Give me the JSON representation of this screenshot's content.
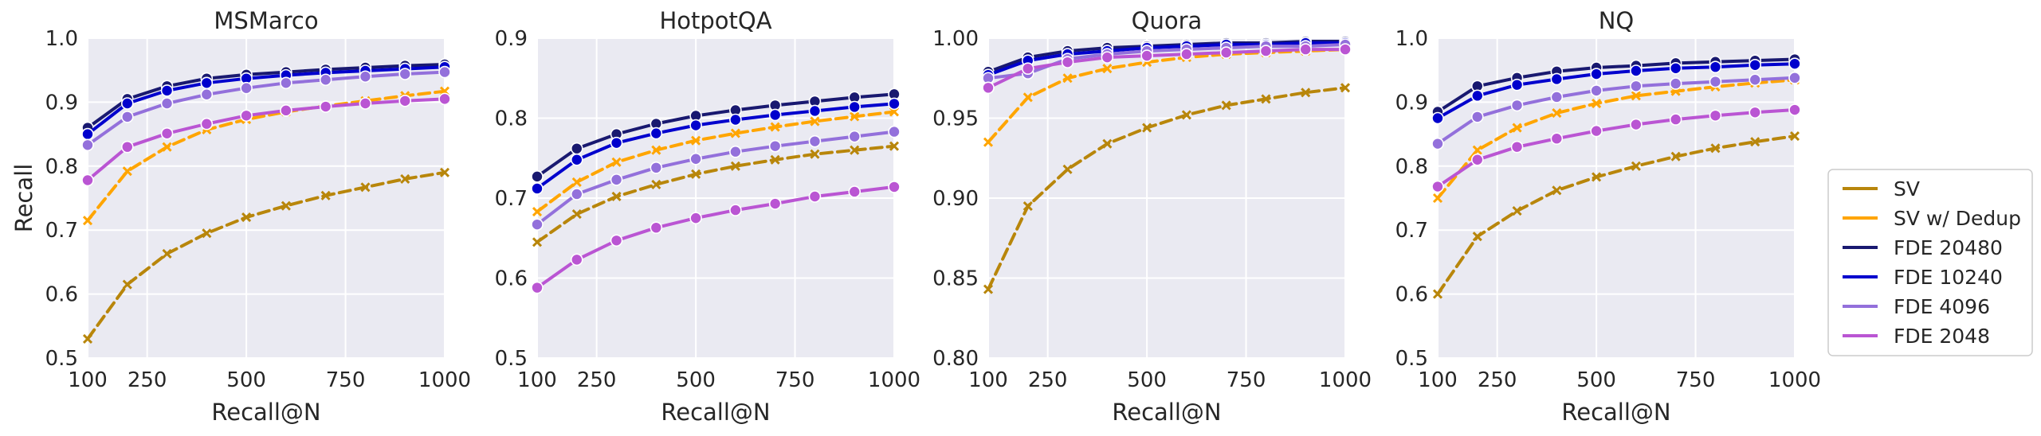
{
  "chart_data": [
    {
      "type": "line",
      "title": "MSMarco",
      "xlabel": "Recall@N",
      "ylabel": "Recall",
      "xlim": [
        100,
        1000
      ],
      "ylim": [
        0.5,
        1.0
      ],
      "xticks": [
        100,
        250,
        500,
        750,
        1000
      ],
      "yticks": [
        0.5,
        0.6,
        0.7,
        0.8,
        0.9,
        1.0
      ],
      "ytick_labels": [
        "0.5",
        "0.6",
        "0.7",
        "0.8",
        "0.9",
        "1.0"
      ],
      "x": [
        100,
        200,
        300,
        400,
        500,
        600,
        700,
        800,
        900,
        1000
      ],
      "series": [
        {
          "name": "SV",
          "values": [
            0.53,
            0.615,
            0.663,
            0.695,
            0.72,
            0.738,
            0.754,
            0.767,
            0.78,
            0.79
          ]
        },
        {
          "name": "SV w/ Dedup",
          "values": [
            0.715,
            0.792,
            0.83,
            0.857,
            0.873,
            0.885,
            0.894,
            0.902,
            0.91,
            0.917
          ]
        },
        {
          "name": "FDE 20480",
          "values": [
            0.86,
            0.905,
            0.925,
            0.937,
            0.943,
            0.947,
            0.951,
            0.954,
            0.957,
            0.959
          ]
        },
        {
          "name": "FDE 10240",
          "values": [
            0.85,
            0.898,
            0.918,
            0.93,
            0.937,
            0.942,
            0.946,
            0.949,
            0.952,
            0.955
          ]
        },
        {
          "name": "FDE 4096",
          "values": [
            0.833,
            0.877,
            0.898,
            0.912,
            0.922,
            0.93,
            0.935,
            0.94,
            0.944,
            0.947
          ]
        },
        {
          "name": "FDE 2048",
          "values": [
            0.778,
            0.83,
            0.851,
            0.866,
            0.879,
            0.887,
            0.893,
            0.898,
            0.902,
            0.905
          ]
        }
      ]
    },
    {
      "type": "line",
      "title": "HotpotQA",
      "xlabel": "Recall@N",
      "ylabel": "",
      "xlim": [
        100,
        1000
      ],
      "ylim": [
        0.5,
        0.9
      ],
      "xticks": [
        100,
        250,
        500,
        750,
        1000
      ],
      "yticks": [
        0.5,
        0.6,
        0.7,
        0.8,
        0.9
      ],
      "ytick_labels": [
        "0.5",
        "0.6",
        "0.7",
        "0.8",
        "0.9"
      ],
      "x": [
        100,
        200,
        300,
        400,
        500,
        600,
        700,
        800,
        900,
        1000
      ],
      "series": [
        {
          "name": "SV",
          "values": [
            0.645,
            0.68,
            0.702,
            0.717,
            0.73,
            0.74,
            0.748,
            0.755,
            0.76,
            0.765
          ]
        },
        {
          "name": "SV w/ Dedup",
          "values": [
            0.683,
            0.72,
            0.745,
            0.76,
            0.772,
            0.781,
            0.789,
            0.796,
            0.802,
            0.808
          ]
        },
        {
          "name": "FDE 20480",
          "values": [
            0.727,
            0.762,
            0.78,
            0.793,
            0.803,
            0.81,
            0.816,
            0.821,
            0.826,
            0.83
          ]
        },
        {
          "name": "FDE 10240",
          "values": [
            0.712,
            0.748,
            0.769,
            0.781,
            0.791,
            0.798,
            0.804,
            0.809,
            0.814,
            0.818
          ]
        },
        {
          "name": "FDE 4096",
          "values": [
            0.667,
            0.705,
            0.723,
            0.738,
            0.749,
            0.758,
            0.765,
            0.771,
            0.777,
            0.783
          ]
        },
        {
          "name": "FDE 2048",
          "values": [
            0.588,
            0.623,
            0.647,
            0.663,
            0.675,
            0.685,
            0.693,
            0.702,
            0.708,
            0.714
          ]
        }
      ]
    },
    {
      "type": "line",
      "title": "Quora",
      "xlabel": "Recall@N",
      "ylabel": "",
      "xlim": [
        100,
        1000
      ],
      "ylim": [
        0.8,
        1.0
      ],
      "xticks": [
        100,
        250,
        500,
        750,
        1000
      ],
      "yticks": [
        0.8,
        0.85,
        0.9,
        0.95,
        1.0
      ],
      "ytick_labels": [
        "0.80",
        "0.85",
        "0.90",
        "0.95",
        "1.00"
      ],
      "x": [
        100,
        200,
        300,
        400,
        500,
        600,
        700,
        800,
        900,
        1000
      ],
      "series": [
        {
          "name": "SV",
          "values": [
            0.843,
            0.895,
            0.918,
            0.934,
            0.944,
            0.952,
            0.958,
            0.962,
            0.966,
            0.969
          ]
        },
        {
          "name": "SV w/ Dedup",
          "values": [
            0.935,
            0.963,
            0.975,
            0.981,
            0.985,
            0.988,
            0.99,
            0.991,
            0.992,
            0.993
          ]
        },
        {
          "name": "FDE 20480",
          "values": [
            0.979,
            0.988,
            0.992,
            0.994,
            0.995,
            0.996,
            0.997,
            0.997,
            0.998,
            0.998
          ]
        },
        {
          "name": "FDE 10240",
          "values": [
            0.977,
            0.986,
            0.99,
            0.992,
            0.994,
            0.995,
            0.996,
            0.996,
            0.997,
            0.997
          ]
        },
        {
          "name": "FDE 4096",
          "values": [
            0.975,
            0.978,
            0.987,
            0.99,
            0.992,
            0.993,
            0.994,
            0.995,
            0.995,
            0.996
          ]
        },
        {
          "name": "FDE 2048",
          "values": [
            0.969,
            0.981,
            0.985,
            0.988,
            0.989,
            0.99,
            0.991,
            0.992,
            0.993,
            0.993
          ]
        }
      ]
    },
    {
      "type": "line",
      "title": "NQ",
      "xlabel": "Recall@N",
      "ylabel": "",
      "xlim": [
        100,
        1000
      ],
      "ylim": [
        0.5,
        1.0
      ],
      "xticks": [
        100,
        250,
        500,
        750,
        1000
      ],
      "yticks": [
        0.5,
        0.6,
        0.7,
        0.8,
        0.9,
        1.0
      ],
      "ytick_labels": [
        "0.5",
        "0.6",
        "0.7",
        "0.8",
        "0.9",
        "1.0"
      ],
      "x": [
        100,
        200,
        300,
        400,
        500,
        600,
        700,
        800,
        900,
        1000
      ],
      "series": [
        {
          "name": "SV",
          "values": [
            0.6,
            0.69,
            0.73,
            0.762,
            0.783,
            0.8,
            0.815,
            0.828,
            0.838,
            0.847
          ]
        },
        {
          "name": "SV w/ Dedup",
          "values": [
            0.75,
            0.825,
            0.86,
            0.883,
            0.898,
            0.91,
            0.917,
            0.924,
            0.93,
            0.935
          ]
        },
        {
          "name": "FDE 20480",
          "values": [
            0.885,
            0.925,
            0.938,
            0.948,
            0.954,
            0.957,
            0.961,
            0.963,
            0.965,
            0.967
          ]
        },
        {
          "name": "FDE 10240",
          "values": [
            0.875,
            0.91,
            0.927,
            0.936,
            0.944,
            0.949,
            0.953,
            0.955,
            0.958,
            0.96
          ]
        },
        {
          "name": "FDE 4096",
          "values": [
            0.835,
            0.877,
            0.895,
            0.908,
            0.918,
            0.925,
            0.929,
            0.932,
            0.935,
            0.938
          ]
        },
        {
          "name": "FDE 2048",
          "values": [
            0.768,
            0.81,
            0.83,
            0.843,
            0.855,
            0.865,
            0.873,
            0.879,
            0.884,
            0.888
          ]
        }
      ]
    }
  ],
  "legend": {
    "placement": "right",
    "entries": [
      "SV",
      "SV w/ Dedup",
      "FDE 20480",
      "FDE 10240",
      "FDE 4096",
      "FDE 2048"
    ]
  },
  "series_styles": {
    "SV": {
      "color": "#b8860b",
      "dash": "dashed",
      "marker": "x"
    },
    "SV w/ Dedup": {
      "color": "#ffa500",
      "dash": "dashed",
      "marker": "x"
    },
    "FDE 20480": {
      "color": "#191970",
      "dash": "solid",
      "marker": "circle"
    },
    "FDE 10240": {
      "color": "#0000cd",
      "dash": "solid",
      "marker": "circle"
    },
    "FDE 4096": {
      "color": "#9370db",
      "dash": "solid",
      "marker": "circle"
    },
    "FDE 2048": {
      "color": "#ba55d3",
      "dash": "solid",
      "marker": "circle"
    }
  },
  "grid": true
}
